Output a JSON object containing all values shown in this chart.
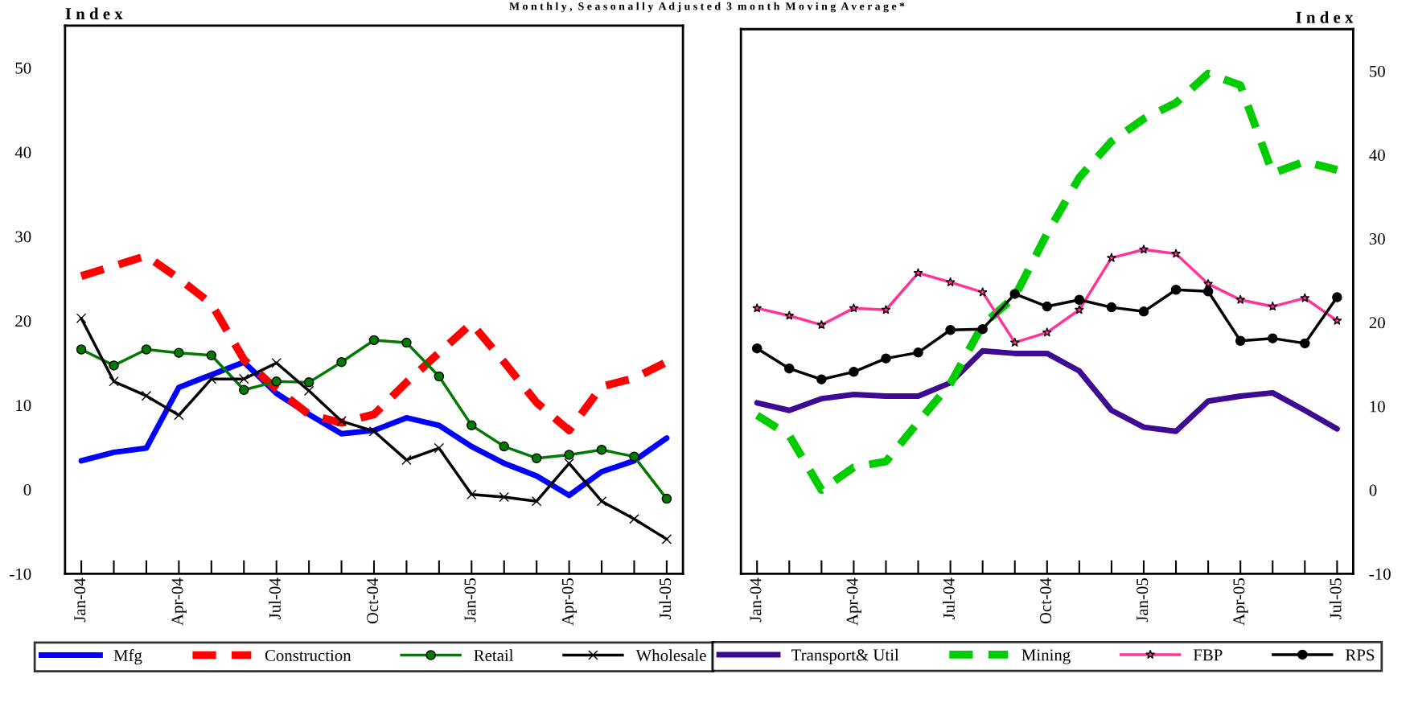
{
  "chart_data": [
    {
      "type": "line",
      "title": "M o n t h l y ,  S e a s o n a l l y  A d j u s t e d  3  m o n t h  M o v i n g  A v e r a g e *",
      "ylabel": "I n d e x",
      "categories": [
        "Jan-04",
        null,
        null,
        "Apr-04",
        null,
        null,
        "Jul-04",
        null,
        null,
        "Oct-04",
        null,
        null,
        "Jan-05",
        null,
        null,
        "Apr-05",
        null,
        null,
        "Jul-05"
      ],
      "ylim": [
        -10,
        55
      ],
      "yticks": [
        -10,
        0,
        10,
        20,
        30,
        40,
        50
      ],
      "grid": false,
      "legend": "bottom",
      "series": [
        {
          "name": "Mfg",
          "color": "#0000ff",
          "marker": "none",
          "line_style": "solid",
          "values": [
            3.4,
            4.4,
            4.9,
            12.1,
            13.6,
            15.1,
            11.4,
            8.9,
            6.6,
            7.0,
            8.5,
            7.6,
            5.1,
            3.1,
            1.6,
            -0.7,
            2.1,
            3.4,
            6.1
          ]
        },
        {
          "name": "Construction",
          "color": "#ff0000",
          "marker": "none",
          "line_style": "dashed",
          "values": [
            25.3,
            26.5,
            27.7,
            25.0,
            22.0,
            15.4,
            11.9,
            8.9,
            7.9,
            8.9,
            12.7,
            16.2,
            19.7,
            15.1,
            10.3,
            7.0,
            12.2,
            13.2,
            15.1
          ]
        },
        {
          "name": "Retail",
          "color": "#007a00",
          "marker": "circle",
          "line_style": "solid",
          "values": [
            16.6,
            14.7,
            16.6,
            16.2,
            15.9,
            11.8,
            12.8,
            12.7,
            15.1,
            17.7,
            17.4,
            13.4,
            7.6,
            5.1,
            3.7,
            4.1,
            4.7,
            3.9,
            -1.1
          ]
        },
        {
          "name": "Wholesale",
          "color": "#000000",
          "marker": "cross",
          "line_style": "solid",
          "values": [
            20.3,
            12.8,
            11.1,
            8.8,
            13.1,
            13.1,
            15.0,
            11.7,
            8.1,
            6.9,
            3.5,
            4.9,
            -0.6,
            -0.9,
            -1.4,
            3.1,
            -1.4,
            -3.5,
            -5.9
          ]
        }
      ]
    },
    {
      "type": "line",
      "y2label": "I n d e x",
      "categories": [
        "Jan-04",
        null,
        null,
        "Apr-04",
        null,
        null,
        "Jul-04",
        null,
        null,
        "Oct-04",
        null,
        null,
        "Jan-05",
        null,
        null,
        "Apr-05",
        null,
        null,
        "Jul-05"
      ],
      "y2lim": [
        -10,
        55
      ],
      "y2ticks": [
        -10,
        0,
        10,
        20,
        30,
        40,
        50
      ],
      "grid": false,
      "legend": "bottom",
      "series": [
        {
          "name": "Transport& Util",
          "color": "#3d0a91",
          "axis": "y2",
          "marker": "none",
          "line_style": "solid",
          "values": [
            10.4,
            9.5,
            10.9,
            11.4,
            11.2,
            11.2,
            12.8,
            16.6,
            16.3,
            16.3,
            14.2,
            9.5,
            7.5,
            7.0,
            10.6,
            11.2,
            11.6,
            9.5,
            7.3
          ]
        },
        {
          "name": "Mining",
          "color": "#00cc00",
          "axis": "y2",
          "marker": "none",
          "line_style": "dashed",
          "values": [
            8.9,
            6.5,
            0.0,
            2.7,
            3.4,
            8.1,
            12.7,
            19.7,
            23.1,
            30.6,
            37.3,
            41.6,
            44.3,
            46.2,
            49.7,
            48.3,
            37.8,
            39.2,
            38.2
          ]
        },
        {
          "name": "FBP",
          "color": "#ff3399",
          "axis": "y2",
          "marker": "star",
          "line_style": "solid",
          "values": [
            21.7,
            20.8,
            19.7,
            21.7,
            21.5,
            25.9,
            24.8,
            23.6,
            17.6,
            18.8,
            21.5,
            27.7,
            28.7,
            28.2,
            24.6,
            22.7,
            21.9,
            22.9,
            20.2
          ]
        },
        {
          "name": "RPS",
          "color": "#000000",
          "axis": "y2",
          "marker": "circle",
          "line_style": "solid",
          "values": [
            16.9,
            14.5,
            13.2,
            14.1,
            15.7,
            16.4,
            19.1,
            19.2,
            23.4,
            21.9,
            22.7,
            21.8,
            21.3,
            23.9,
            23.7,
            17.8,
            18.1,
            17.5,
            23.0
          ]
        }
      ]
    }
  ]
}
